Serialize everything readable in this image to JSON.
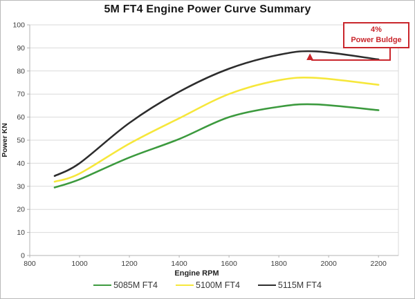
{
  "title": "5M FT4 Engine Power Curve Summary",
  "annotation": {
    "line1": "4%",
    "line2": "Power Buldge",
    "color": "#c9252b",
    "points_to": {
      "rpm": 1925,
      "power_kn": 88.5
    }
  },
  "chart_data": {
    "type": "line",
    "title": "5M FT4 Engine Power Curve Summary",
    "xlabel": "Engine RPM",
    "ylabel": "Power KN",
    "xlim": [
      800,
      2280
    ],
    "ylim": [
      0,
      100
    ],
    "x_ticks": [
      800,
      1000,
      1200,
      1400,
      1600,
      1800,
      2000,
      2200
    ],
    "y_ticks": [
      0,
      10,
      20,
      30,
      40,
      50,
      60,
      70,
      80,
      90,
      100
    ],
    "grid": "horizontal",
    "legend_position": "bottom",
    "x": [
      900,
      1000,
      1200,
      1400,
      1600,
      1800,
      1950,
      2200
    ],
    "series": [
      {
        "name": "5085M FT4",
        "color": "#3c9a3e",
        "values": [
          29.5,
          33,
          42.5,
          50.5,
          60,
          64.5,
          65.5,
          63
        ]
      },
      {
        "name": "5100M FT4",
        "color": "#f6e73b",
        "values": [
          32,
          35.5,
          48.5,
          59.5,
          70,
          76,
          77,
          74
        ]
      },
      {
        "name": "5115M FT4",
        "color": "#2d2d2d",
        "values": [
          34.5,
          40,
          57.5,
          71,
          81,
          87,
          88.5,
          85
        ]
      }
    ]
  }
}
